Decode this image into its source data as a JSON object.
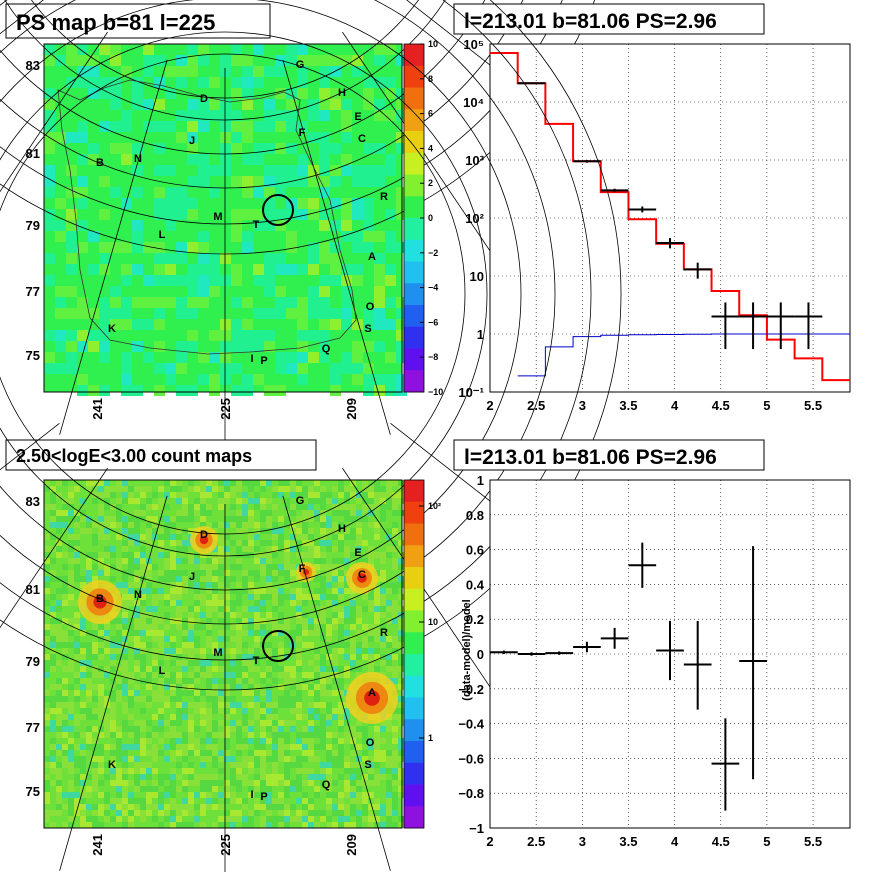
{
  "panels": {
    "ps_map_title": "PS map b=81 l=225",
    "count_map_title": "2.50<logE<3.00 count maps",
    "spectrum_title": "l=213.01 b=81.06 PS=2.96",
    "residual_title": "l=213.01 b=81.06 PS=2.96"
  },
  "sky_axes": {
    "lat_ticks": [
      "83",
      "81",
      "79",
      "77",
      "75"
    ],
    "lon_ticks": [
      "241",
      "225",
      "209"
    ]
  },
  "source_labels": [
    "A",
    "B",
    "C",
    "D",
    "E",
    "F",
    "G",
    "H",
    "I",
    "J",
    "K",
    "L",
    "M",
    "N",
    "O",
    "P",
    "Q",
    "R",
    "S",
    "T"
  ],
  "ps_colorbar": {
    "ticks": [
      "10",
      "8",
      "6",
      "4",
      "2",
      "0",
      "−2",
      "−4",
      "−6",
      "−8",
      "−10"
    ],
    "colors": [
      "#e62020",
      "#f04010",
      "#f07010",
      "#f0a010",
      "#e8d010",
      "#c8f020",
      "#80f030",
      "#30f050",
      "#20f0a0",
      "#20e0e0",
      "#20c0f0",
      "#2090f0",
      "#2060f0",
      "#3030f0",
      "#6010f0",
      "#9010e0"
    ]
  },
  "count_colorbar": {
    "ticks": [
      "10²",
      "10",
      "1"
    ]
  },
  "chart_data": [
    {
      "type": "line",
      "title": "l=213.01 b=81.06 PS=2.96",
      "xlabel": "",
      "ylabel": "",
      "xlim": [
        2,
        5.9
      ],
      "ylim": [
        0.1,
        100000
      ],
      "yscale": "log",
      "grid": true,
      "x_ticks": [
        "2",
        "2.5",
        "3",
        "3.5",
        "4",
        "4.5",
        "5",
        "5.5"
      ],
      "y_ticks": [
        "10⁵",
        "10⁴",
        "10³",
        "10²",
        "10",
        "1",
        "10⁻¹"
      ],
      "series": [
        {
          "color": "#ff0000",
          "style": "step",
          "edges": [
            2,
            2.3,
            2.6,
            2.9,
            3.2,
            3.5,
            3.8,
            4.1,
            4.4,
            4.7,
            5,
            5.3,
            5.6,
            5.9
          ],
          "values": [
            70000,
            21000,
            4200,
            950,
            280,
            95,
            36,
            13,
            5.5,
            2.1,
            0.8,
            0.38,
            0.16
          ]
        },
        {
          "color": "#0000cc",
          "style": "step",
          "edges": [
            2.3,
            2.6,
            2.9,
            3.2,
            3.5,
            3.8,
            4.1,
            4.4,
            4.7,
            5,
            5.3,
            5.6,
            5.9
          ],
          "values": [
            0.19,
            0.6,
            0.9,
            0.95,
            0.97,
            0.98,
            0.99,
            1,
            1,
            1,
            1,
            1
          ]
        },
        {
          "color": "#000000",
          "style": "errorbar",
          "points": [
            {
              "x": 2.45,
              "y": 21000,
              "xerr": 0.15,
              "ylo": 20500,
              "yhi": 21500
            },
            {
              "x": 3.05,
              "y": 950,
              "xerr": 0.15,
              "ylo": 900,
              "yhi": 1000
            },
            {
              "x": 3.35,
              "y": 300,
              "xerr": 0.15,
              "ylo": 280,
              "yhi": 320
            },
            {
              "x": 3.65,
              "y": 140,
              "xerr": 0.15,
              "ylo": 125,
              "yhi": 158
            },
            {
              "x": 3.95,
              "y": 37,
              "xerr": 0.15,
              "ylo": 30,
              "yhi": 45
            },
            {
              "x": 4.25,
              "y": 13,
              "xerr": 0.15,
              "ylo": 9,
              "yhi": 17
            },
            {
              "x": 4.55,
              "y": 2,
              "xerr": 0.15,
              "ylo": 0.55,
              "yhi": 3.5
            },
            {
              "x": 4.85,
              "y": 2,
              "xerr": 0.15,
              "ylo": 0.55,
              "yhi": 3.5
            },
            {
              "x": 5.15,
              "y": 2,
              "xerr": 0.15,
              "ylo": 0.55,
              "yhi": 3.5
            },
            {
              "x": 5.45,
              "y": 2,
              "xerr": 0.15,
              "ylo": 0.55,
              "yhi": 3.5
            }
          ]
        }
      ]
    },
    {
      "type": "scatter",
      "title": "l=213.01 b=81.06 PS=2.96",
      "xlabel": "",
      "ylabel": "(data-model)/model",
      "xlim": [
        2,
        5.9
      ],
      "ylim": [
        -1,
        1
      ],
      "grid": true,
      "x_ticks": [
        "2",
        "2.5",
        "3",
        "3.5",
        "4",
        "4.5",
        "5",
        "5.5"
      ],
      "y_ticks": [
        "1",
        "0.8",
        "0.6",
        "0.4",
        "0.2",
        "0",
        "−0.2",
        "−0.4",
        "−0.6",
        "−0.8",
        "−1"
      ],
      "points": [
        {
          "x": 2.15,
          "y": 0.01,
          "xerr": 0.15,
          "ylo": 0.0,
          "yhi": 0.02
        },
        {
          "x": 2.45,
          "y": 0.0,
          "xerr": 0.15,
          "ylo": -0.01,
          "yhi": 0.01
        },
        {
          "x": 2.75,
          "y": 0.005,
          "xerr": 0.15,
          "ylo": -0.005,
          "yhi": 0.015
        },
        {
          "x": 3.05,
          "y": 0.04,
          "xerr": 0.15,
          "ylo": 0.01,
          "yhi": 0.07
        },
        {
          "x": 3.35,
          "y": 0.09,
          "xerr": 0.15,
          "ylo": 0.03,
          "yhi": 0.15
        },
        {
          "x": 3.65,
          "y": 0.51,
          "xerr": 0.15,
          "ylo": 0.38,
          "yhi": 0.64
        },
        {
          "x": 3.95,
          "y": 0.02,
          "xerr": 0.15,
          "ylo": -0.15,
          "yhi": 0.19
        },
        {
          "x": 4.25,
          "y": -0.06,
          "xerr": 0.15,
          "ylo": -0.32,
          "yhi": 0.19
        },
        {
          "x": 4.55,
          "y": -0.63,
          "xerr": 0.15,
          "ylo": -0.9,
          "yhi": -0.37
        },
        {
          "x": 4.85,
          "y": -0.04,
          "xerr": 0.15,
          "ylo": -0.72,
          "yhi": 0.62
        }
      ]
    }
  ]
}
